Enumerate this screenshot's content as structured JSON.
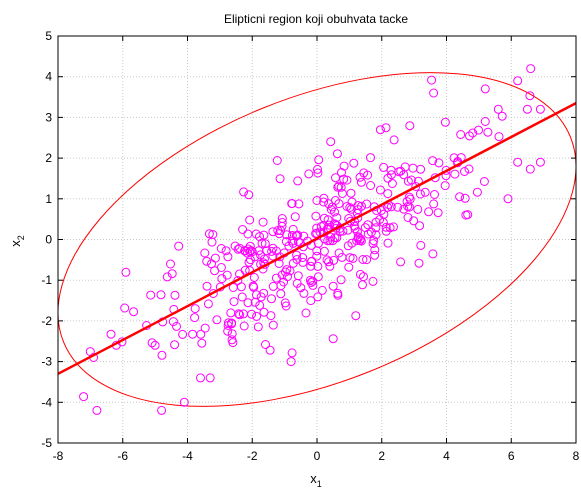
{
  "chart_data": {
    "type": "scatter",
    "title": "Elipticni region koji obuhvata tacke",
    "xlabel": {
      "base": "x",
      "sub": "1"
    },
    "ylabel": {
      "base": "x",
      "sub": "2"
    },
    "xlim": [
      -8,
      8
    ],
    "ylim": [
      -5,
      5
    ],
    "xticks": [
      -8,
      -6,
      -4,
      -2,
      0,
      2,
      4,
      6,
      8
    ],
    "yticks": [
      -5,
      -4,
      -3,
      -2,
      -1,
      0,
      1,
      2,
      3,
      4,
      5
    ],
    "grid": true,
    "colors": {
      "points": "#ff00ff",
      "ellipse": "#ff0000",
      "line": "#ff0000",
      "grid": "#c8c8c8"
    },
    "ellipse": {
      "center": [
        0,
        0
      ],
      "x_extent": [
        -8,
        8
      ],
      "y_extent": [
        -4.1,
        4.1
      ],
      "tilt_deg": 22
    },
    "line": {
      "x": [
        -8,
        8
      ],
      "y": [
        -3.3,
        3.35
      ]
    },
    "points": {
      "count": 420,
      "samples": [
        [
          -6.8,
          -4.2
        ],
        [
          -4.8,
          -4.2
        ],
        [
          -4.1,
          -4.0
        ],
        [
          -3.6,
          -3.4
        ],
        [
          -3.3,
          -3.4
        ],
        [
          -6.9,
          -2.9
        ],
        [
          -6.2,
          -2.6
        ],
        [
          -5.0,
          -2.6
        ],
        [
          -0.8,
          -3.0
        ],
        [
          6.6,
          4.2
        ],
        [
          6.2,
          3.9
        ],
        [
          6.5,
          3.2
        ],
        [
          6.9,
          3.2
        ],
        [
          5.6,
          3.2
        ],
        [
          5.2,
          3.7
        ],
        [
          3.6,
          3.6
        ],
        [
          6.9,
          1.9
        ],
        [
          6.2,
          1.9
        ],
        [
          5.9,
          1.0
        ],
        [
          4.6,
          0.6
        ]
      ]
    }
  }
}
